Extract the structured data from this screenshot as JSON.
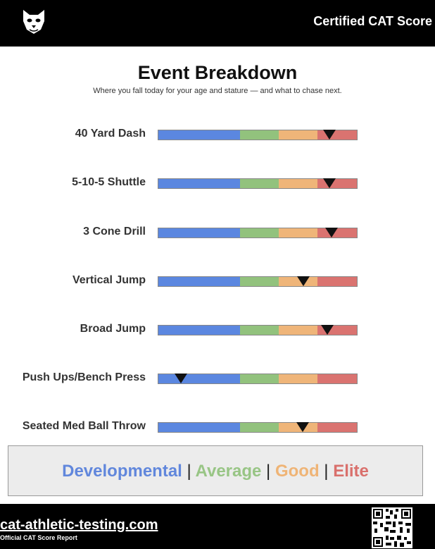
{
  "header": {
    "brand_text": "Certified CAT Score",
    "logo_icon": "cat-head-icon"
  },
  "page": {
    "title": "Event Breakdown",
    "subtitle": "Where you fall today for your age and stature — and what to chase next."
  },
  "scale": {
    "zones": [
      {
        "name": "Developmental",
        "color": "#5b87e0",
        "fraction": 0.41
      },
      {
        "name": "Average",
        "color": "#92c27d",
        "fraction": 0.195
      },
      {
        "name": "Good",
        "color": "#efb579",
        "fraction": 0.195
      },
      {
        "name": "Elite",
        "color": "#da7370",
        "fraction": 0.2
      }
    ]
  },
  "events": [
    {
      "label": "40 Yard Dash",
      "position_fraction": 0.86
    },
    {
      "label": "5-10-5 Shuttle",
      "position_fraction": 0.86
    },
    {
      "label": "3 Cone Drill",
      "position_fraction": 0.87
    },
    {
      "label": "Vertical Jump",
      "position_fraction": 0.73
    },
    {
      "label": "Broad Jump",
      "position_fraction": 0.85
    },
    {
      "label": "Push Ups/Bench Press",
      "position_fraction": 0.115
    },
    {
      "label": "Seated Med Ball Throw",
      "position_fraction": 0.725
    }
  ],
  "legend": {
    "developmental": "Developmental",
    "average": "Average",
    "good": "Good",
    "elite": "Elite",
    "separator": "|"
  },
  "footer": {
    "website": "cat-athletic-testing.com",
    "subtext": "Official CAT Score Report",
    "qr_icon": "qr-code-icon"
  }
}
